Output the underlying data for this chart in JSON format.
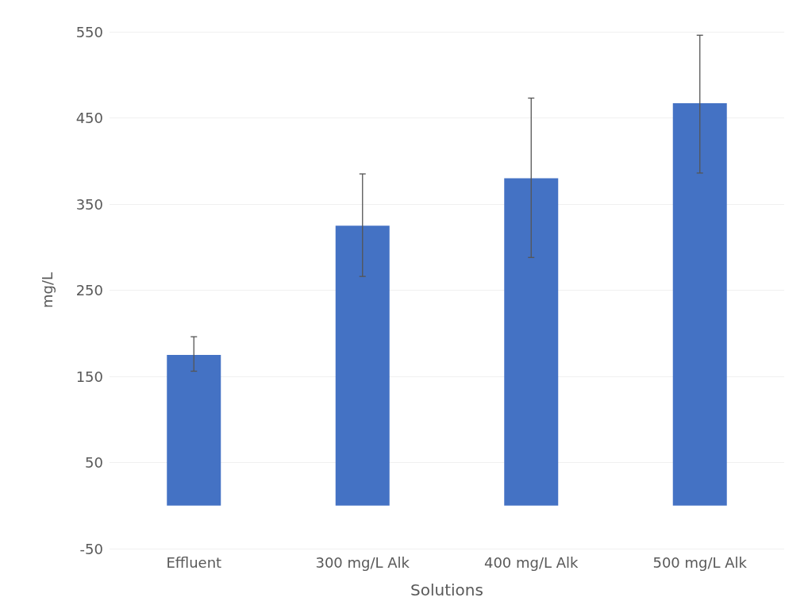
{
  "chart_data": {
    "type": "bar",
    "xlabel": "Solutions",
    "ylabel": "mg/L",
    "categories": [
      "Effluent",
      "300 mg/L Alk",
      "400 mg/L Alk",
      "500 mg/L Alk"
    ],
    "values": [
      175,
      325,
      380,
      467
    ],
    "errors": [
      [
        156,
        196
      ],
      [
        266,
        385
      ],
      [
        288,
        473
      ],
      [
        386,
        546
      ]
    ],
    "color": "#4472c4",
    "ylim": [
      -50,
      550
    ],
    "yticks": [
      -50,
      50,
      150,
      250,
      350,
      450,
      550
    ],
    "grid": "y"
  }
}
